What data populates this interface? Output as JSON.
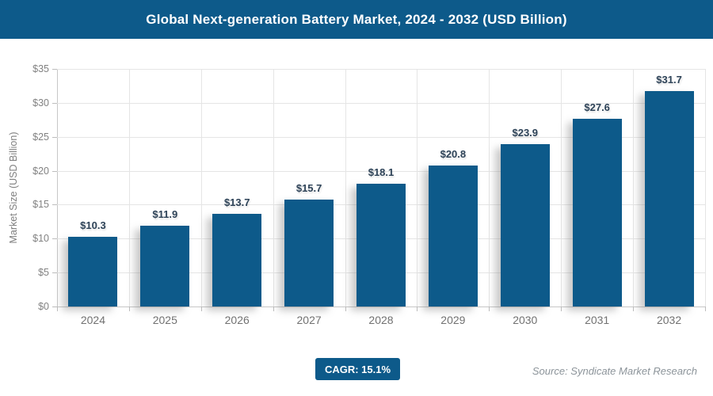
{
  "header": {
    "title": "Global Next-generation Battery Market, 2024 - 2032 (USD Billion)"
  },
  "chart_data": {
    "type": "bar",
    "title": "Global Next-generation Battery Market, 2024 - 2032 (USD Billion)",
    "categories": [
      "2024",
      "2025",
      "2026",
      "2027",
      "2028",
      "2029",
      "2030",
      "2031",
      "2032"
    ],
    "values": [
      10.3,
      11.9,
      13.7,
      15.7,
      18.1,
      20.8,
      23.9,
      27.6,
      31.7
    ],
    "value_labels": [
      "$10.3",
      "$11.9",
      "$13.7",
      "$15.7",
      "$18.1",
      "$20.8",
      "$23.9",
      "$27.6",
      "$31.7"
    ],
    "xlabel": "",
    "ylabel": "Market Size (USD Billion)",
    "ylim": [
      0,
      35
    ],
    "ytick_step": 5,
    "ytick_labels": [
      "$0",
      "$5",
      "$10",
      "$15",
      "$20",
      "$25",
      "$30",
      "$35"
    ],
    "grid": true,
    "legend": "none"
  },
  "footer": {
    "cagr_label": "CAGR: 15.1%",
    "source": "Source: Syndicate Market Research"
  },
  "colors": {
    "accent_blue": "#0d5a8a",
    "value_label": "#2e4358",
    "grid_line": "#e5e5e5",
    "axis_line": "#c7c7c7",
    "tick_text": "#828282",
    "category_text": "#717171",
    "source_text": "#8c949a"
  }
}
